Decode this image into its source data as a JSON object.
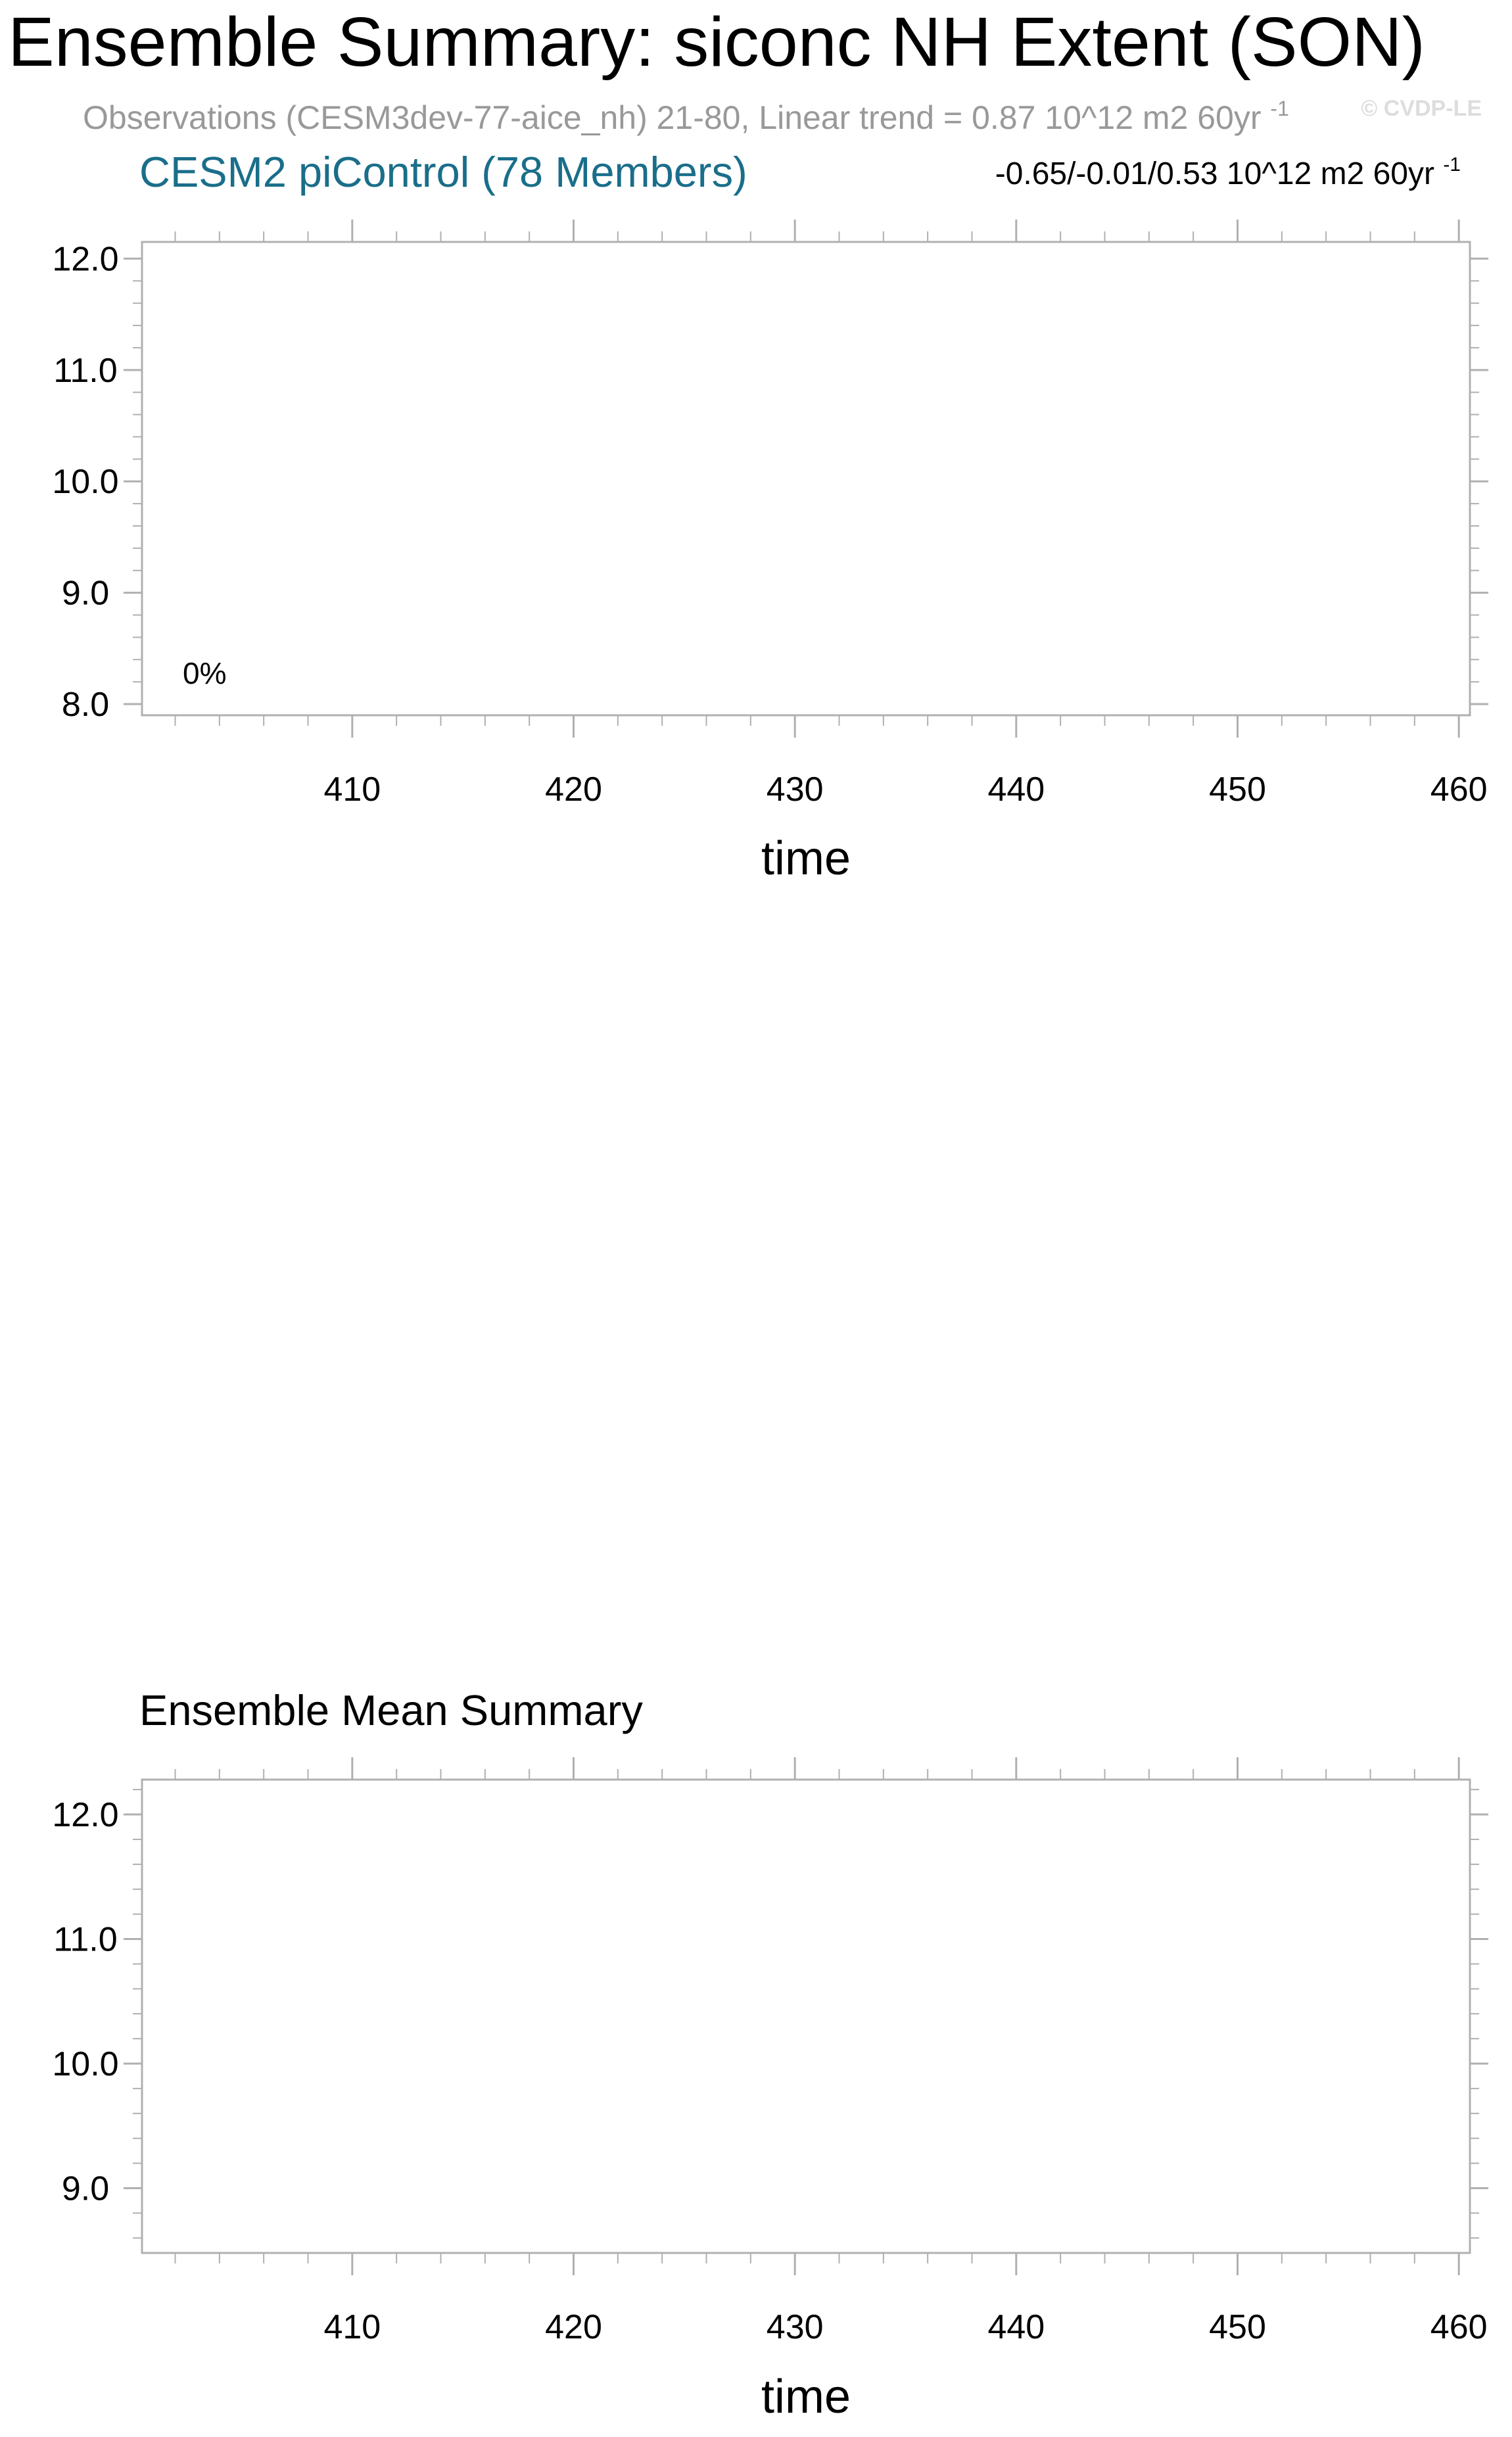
{
  "title": "Ensemble Summary: siconc NH Extent (SON)",
  "obs_line": {
    "text": "Observations (CESM3dev-77-aice_nh) 21-80, Linear trend = 0.87 10^12 m2 60yr",
    "exponent": "-1",
    "color": "#999999"
  },
  "watermark": "© CVDP-LE",
  "chart_data": [
    {
      "type": "line",
      "title": "CESM2 piControl (78 Members)",
      "title_color": "#1a6e8a",
      "right_label": "-0.65/-0.01/0.53 10^12 m2 60yr",
      "right_label_exponent": "-1",
      "annotation": "0%",
      "xlabel": "time",
      "ylabel": "",
      "xlim": [
        400.5,
        460.5
      ],
      "ylim": [
        7.9,
        12.15
      ],
      "x_ticks": [
        410,
        420,
        430,
        440,
        450,
        460
      ],
      "x_tick_labels": [
        "410",
        "420",
        "430",
        "440",
        "450",
        "460"
      ],
      "y_ticks": [
        8.0,
        9.0,
        10.0,
        11.0,
        12.0
      ],
      "y_tick_labels": [
        "8.0",
        "9.0",
        "10.0",
        "11.0",
        "12.0"
      ],
      "grid": false,
      "series": []
    },
    {
      "type": "line",
      "title": "Ensemble Mean Summary",
      "title_color": "#000000",
      "xlabel": "time",
      "ylabel": "",
      "xlim": [
        400.5,
        460.5
      ],
      "ylim": [
        8.48,
        12.28
      ],
      "x_ticks": [
        410,
        420,
        430,
        440,
        450,
        460
      ],
      "x_tick_labels": [
        "410",
        "420",
        "430",
        "440",
        "450",
        "460"
      ],
      "y_ticks": [
        9.0,
        10.0,
        11.0,
        12.0
      ],
      "y_tick_labels": [
        "9.0",
        "10.0",
        "11.0",
        "12.0"
      ],
      "grid": false,
      "series": []
    }
  ]
}
